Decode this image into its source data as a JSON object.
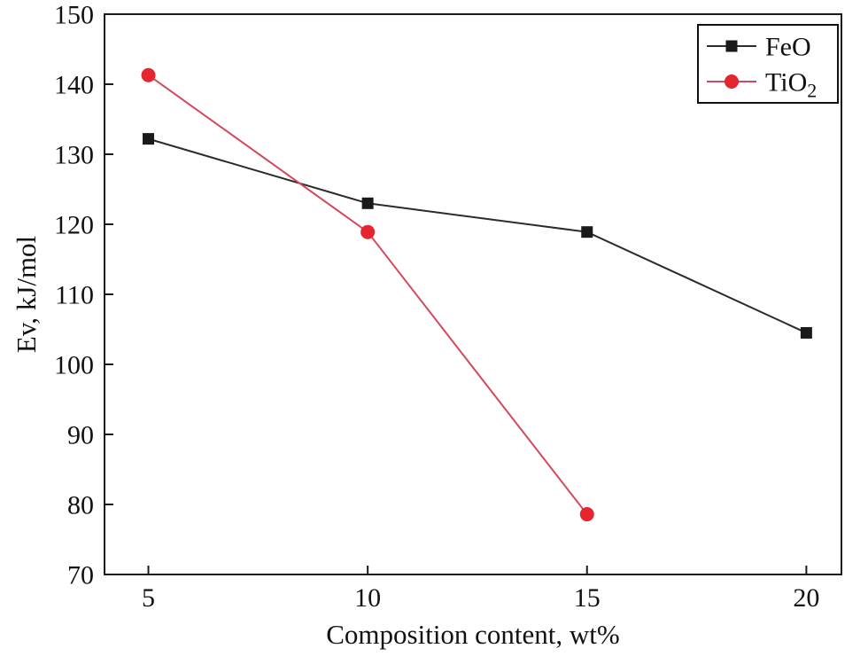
{
  "chart_data": {
    "type": "line",
    "title": "",
    "xlabel": "Composition content, wt%",
    "ylabel": "Ev, kJ/mol",
    "xlim": [
      4.0,
      20.8
    ],
    "ylim": [
      70,
      150
    ],
    "x_ticks": [
      5,
      10,
      15,
      20
    ],
    "y_ticks": [
      70,
      80,
      90,
      100,
      110,
      120,
      130,
      140,
      150
    ],
    "grid": false,
    "axis_color": "#1a1a1a",
    "legend": {
      "position": "top-right",
      "entries": [
        {
          "base": "FeO",
          "sub": ""
        },
        {
          "base": "TiO",
          "sub": "2"
        }
      ]
    },
    "series": [
      {
        "name": "FeO",
        "marker": "square",
        "line_color": "#2b2b2b",
        "marker_color": "#1a1a1a",
        "x": [
          5,
          10,
          15,
          20
        ],
        "y": [
          132.2,
          123.0,
          118.9,
          104.5
        ]
      },
      {
        "name": "TiO2",
        "marker": "circle",
        "line_color": "#d4495d",
        "marker_color": "#e5252f",
        "x": [
          5,
          10,
          15
        ],
        "y": [
          141.3,
          118.9,
          78.6
        ]
      }
    ]
  }
}
